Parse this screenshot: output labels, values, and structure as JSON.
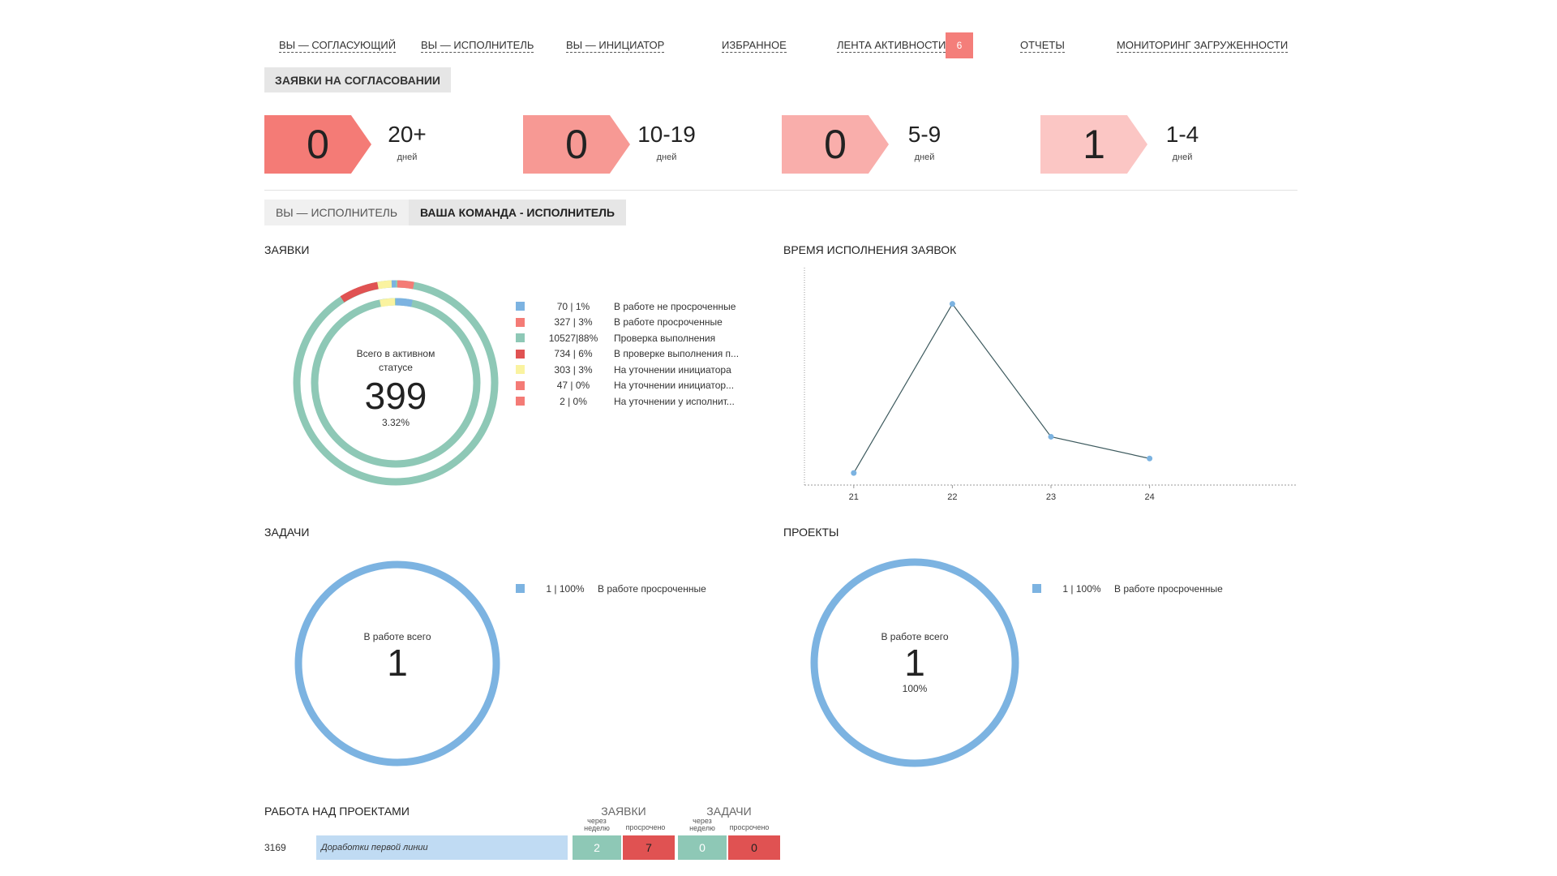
{
  "nav": {
    "items": [
      "ВЫ — СОГЛАСУЮЩИЙ",
      "ВЫ — ИСПОЛНИТЕЛЬ",
      "ВЫ — ИНИЦИАТОР",
      "ИЗБРАННОЕ",
      "ЛЕНТА АКТИВНОСТИ",
      "ОТЧЕТЫ",
      "МОНИТОРИНГ ЗАГРУЖЕННОСТИ"
    ],
    "activity_badge": "6"
  },
  "approval_button": "ЗАЯВКИ НА СОГЛАСОВАНИИ",
  "aging": [
    {
      "count": "0",
      "range": "20+",
      "unit": "дней",
      "color": "#f47b76"
    },
    {
      "count": "0",
      "range": "10-19",
      "unit": "дней",
      "color": "#f79994"
    },
    {
      "count": "0",
      "range": "5-9",
      "unit": "дней",
      "color": "#f9aeab"
    },
    {
      "count": "1",
      "range": "1-4",
      "unit": "дней",
      "color": "#fbc6c4"
    }
  ],
  "tabs": [
    "ВЫ — ИСПОЛНИТЕЛЬ",
    "ВАША КОМАНДА - ИСПОЛНИТЕЛЬ"
  ],
  "requests": {
    "title": "ЗАЯВКИ",
    "center_label": "Всего в активном статусе",
    "center_value": "399",
    "center_percent": "3.32%",
    "legend": [
      {
        "value": "70 | 1%",
        "label": "В работе не просроченные",
        "color": "#7cb3e1"
      },
      {
        "value": "327 | 3%",
        "label": "В работе просроченные",
        "color": "#f47b76"
      },
      {
        "value": "10527|88%",
        "label": "Проверка выполнения",
        "color": "#8ec8b6"
      },
      {
        "value": "734 | 6%",
        "label": "В проверке выполнения п...",
        "color": "#e05252"
      },
      {
        "value": "303 | 3%",
        "label": "На уточнении инициатора",
        "color": "#faf3a0"
      },
      {
        "value": "47 | 0%",
        "label": "На уточнении инициатор...",
        "color": "#f47b76"
      },
      {
        "value": "2 | 0%",
        "label": "На уточнении у исполнит...",
        "color": "#f47b76"
      }
    ]
  },
  "exec_time": {
    "title": "ВРЕМЯ ИСПОЛНЕНИЯ ЗАЯВОК"
  },
  "chart_data": {
    "type": "line",
    "title": "ВРЕМЯ ИСПОЛНЕНИЯ ЗАЯВОК",
    "x": [
      21,
      22,
      23,
      24
    ],
    "series": [
      {
        "values": [
          1,
          15,
          4,
          2.2
        ]
      }
    ],
    "ylim": [
      0,
      18
    ],
    "x_tick_labels": [
      "21",
      "22",
      "23",
      "24"
    ],
    "xlabel": "",
    "ylabel": "",
    "grid": false
  },
  "tasks": {
    "title": "ЗАДАЧИ",
    "center_label": "В работе всего",
    "center_value": "1",
    "legend": [
      {
        "value": "1 | 100%",
        "label": "В работе просроченные",
        "color": "#7cb3e1"
      }
    ]
  },
  "projects": {
    "title": "ПРОЕКТЫ",
    "center_label": "В работе всего",
    "center_value": "1",
    "center_percent": "100%",
    "legend": [
      {
        "value": "1 | 100%",
        "label": "В работе просроченные",
        "color": "#7cb3e1"
      }
    ]
  },
  "work": {
    "title": "РАБОТА НАД ПРОЕКТАМИ",
    "group_requests": "ЗАЯВКИ",
    "group_tasks": "ЗАДАЧИ",
    "col_week": "через неделю",
    "col_overdue": "просрочено",
    "rows": [
      {
        "id": "3169",
        "name": "Доработки первой линии",
        "req_week": "2",
        "req_overdue": "7",
        "task_week": "0",
        "task_overdue": "0"
      }
    ]
  }
}
